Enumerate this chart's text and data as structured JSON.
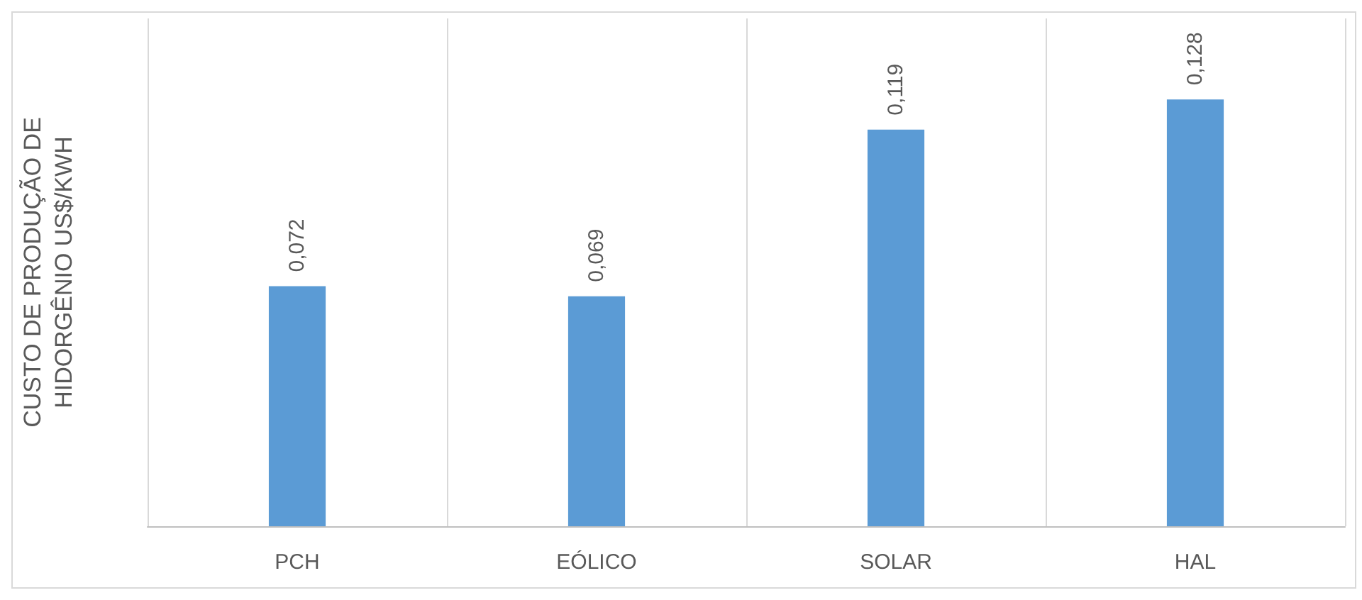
{
  "chart_data": {
    "type": "bar",
    "ylabel": "CUSTO DE PRODUÇÃO DE HIDORGÊNIO US$/KWH",
    "categories": [
      "PCH",
      "EÓLICO",
      "SOLAR",
      "HAL"
    ],
    "values": [
      0.072,
      0.069,
      0.119,
      0.128
    ],
    "value_labels": [
      "0,072",
      "0,069",
      "0,119",
      "0,128"
    ],
    "color": "#5b9bd5",
    "grid": "x"
  }
}
